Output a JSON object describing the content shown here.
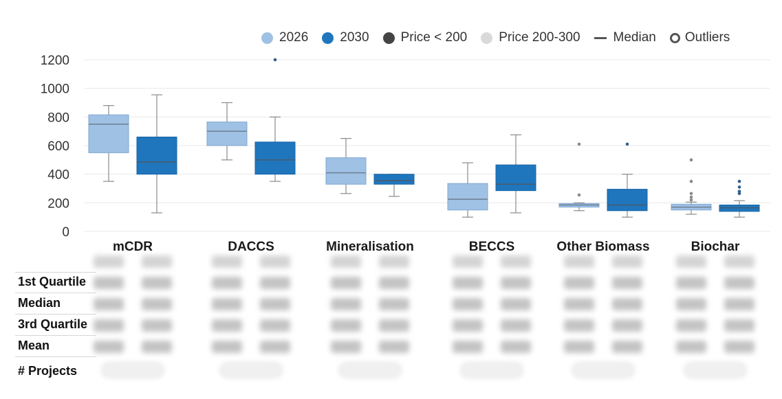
{
  "colors": {
    "c2026": "#9fc1e3",
    "c2030": "#1f76bd",
    "price_lt_200": "#444444",
    "price_200_300": "#d9d9d9",
    "median": "#555555",
    "grid": "#e8e8e8"
  },
  "legend": [
    {
      "label": "2026",
      "type": "dot",
      "color": "#9fc1e3"
    },
    {
      "label": "2030",
      "type": "dot",
      "color": "#1f76bd"
    },
    {
      "label": "Price < 200",
      "type": "dot",
      "color": "#444444"
    },
    {
      "label": "Price 200-300",
      "type": "dot",
      "color": "#d9d9d9"
    },
    {
      "label": "Median",
      "type": "line",
      "color": "#555555"
    },
    {
      "label": "Outliers",
      "type": "ring",
      "color": "#555555"
    }
  ],
  "chart_data": {
    "type": "box",
    "categories": [
      "mCDR",
      "DACCS",
      "Mineralisation",
      "BECCS",
      "Other Biomass",
      "Biochar"
    ],
    "ylim": [
      0,
      1200
    ],
    "yticks": [
      0,
      200,
      400,
      600,
      800,
      1000,
      1200
    ],
    "grid": true,
    "legend_position": "top-right",
    "series": [
      {
        "name": "2026",
        "color": "#9fc1e3",
        "boxes": [
          {
            "min": 350,
            "q1": 550,
            "median": 750,
            "q3": 815,
            "max": 880,
            "outliers": []
          },
          {
            "min": 500,
            "q1": 600,
            "median": 700,
            "q3": 765,
            "max": 900,
            "outliers": []
          },
          {
            "min": 265,
            "q1": 330,
            "median": 410,
            "q3": 515,
            "max": 650,
            "outliers": []
          },
          {
            "min": 100,
            "q1": 150,
            "median": 225,
            "q3": 335,
            "max": 480,
            "outliers": []
          },
          {
            "min": 145,
            "q1": 170,
            "median": 185,
            "q3": 195,
            "max": 200,
            "outliers": [
              255,
              610
            ]
          },
          {
            "min": 120,
            "q1": 150,
            "median": 170,
            "q3": 190,
            "max": 205,
            "outliers": [
              220,
              240,
              265,
              350,
              500
            ]
          }
        ]
      },
      {
        "name": "2030",
        "color": "#1f76bd",
        "boxes": [
          {
            "min": 130,
            "q1": 400,
            "median": 485,
            "q3": 660,
            "max": 955,
            "outliers": []
          },
          {
            "min": 350,
            "q1": 400,
            "median": 500,
            "q3": 625,
            "max": 800,
            "outliers": [
              1200
            ]
          },
          {
            "min": 245,
            "q1": 330,
            "median": 355,
            "q3": 400,
            "max": 400,
            "outliers": []
          },
          {
            "min": 130,
            "q1": 285,
            "median": 330,
            "q3": 465,
            "max": 675,
            "outliers": []
          },
          {
            "min": 100,
            "q1": 145,
            "median": 185,
            "q3": 295,
            "max": 400,
            "outliers": [
              610
            ]
          },
          {
            "min": 100,
            "q1": 140,
            "median": 165,
            "q3": 185,
            "max": 215,
            "outliers": [
              265,
              280,
              310,
              350
            ]
          }
        ]
      }
    ]
  },
  "table": {
    "row_labels": [
      "1st Quartile",
      "Median",
      "3rd Quartile",
      "Mean"
    ],
    "projects_label": "# Projects"
  }
}
